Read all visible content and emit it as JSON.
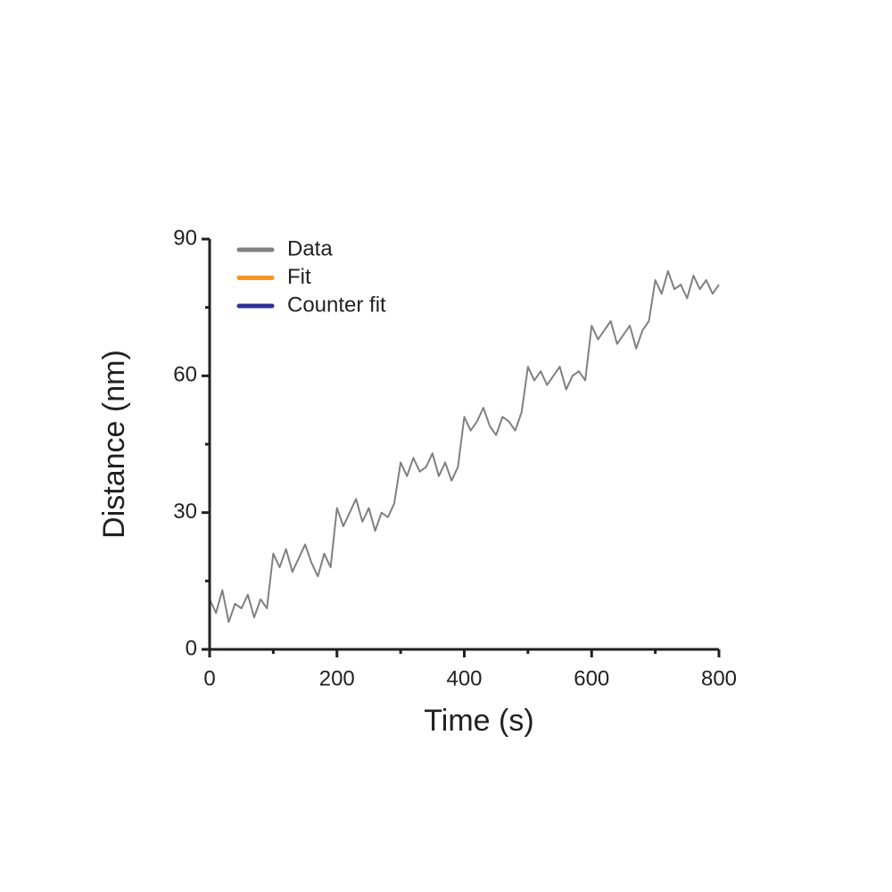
{
  "chart_data": {
    "type": "line",
    "xlabel": "Time (s)",
    "ylabel": "Distance (nm)",
    "x": [
      0,
      10,
      20,
      30,
      40,
      50,
      60,
      70,
      80,
      90,
      100,
      110,
      120,
      130,
      140,
      150,
      160,
      170,
      180,
      190,
      200,
      210,
      220,
      230,
      240,
      250,
      260,
      270,
      280,
      290,
      300,
      310,
      320,
      330,
      340,
      350,
      360,
      370,
      380,
      390,
      400,
      410,
      420,
      430,
      440,
      450,
      460,
      470,
      480,
      490,
      500,
      510,
      520,
      530,
      540,
      550,
      560,
      570,
      580,
      590,
      600,
      610,
      620,
      630,
      640,
      650,
      660,
      670,
      680,
      690,
      700,
      710,
      720,
      730,
      740,
      750,
      760,
      770,
      780,
      790,
      800
    ],
    "series": [
      {
        "name": "Data",
        "color": "#808080",
        "values": [
          11,
          8,
          13,
          6,
          10,
          9,
          12,
          7,
          11,
          9,
          21,
          18,
          22,
          17,
          20,
          23,
          19,
          16,
          21,
          18,
          31,
          27,
          30,
          33,
          28,
          31,
          26,
          30,
          29,
          32,
          41,
          38,
          42,
          39,
          40,
          43,
          38,
          41,
          37,
          40,
          51,
          48,
          50,
          53,
          49,
          47,
          51,
          50,
          48,
          52,
          62,
          59,
          61,
          58,
          60,
          62,
          57,
          60,
          61,
          59,
          71,
          68,
          70,
          72,
          67,
          69,
          71,
          66,
          70,
          72,
          81,
          78,
          83,
          79,
          80,
          77,
          82,
          79,
          81,
          78,
          80
        ]
      },
      {
        "name": "Fit",
        "color": "#f7941d",
        "values": [
          null,
          null,
          null,
          null,
          null,
          null,
          null,
          null,
          null,
          null,
          null,
          null,
          null,
          null,
          null,
          null,
          null,
          null,
          null,
          null,
          null,
          null,
          null,
          null,
          null,
          null,
          null,
          null,
          null,
          null,
          null,
          null,
          null,
          null,
          null,
          null,
          null,
          null,
          null,
          null,
          null,
          null,
          null,
          null,
          null,
          null,
          null,
          null,
          null,
          null,
          null,
          null,
          null,
          null,
          null,
          null,
          null,
          null,
          null,
          null,
          null,
          null,
          null,
          null,
          null,
          null,
          null,
          null,
          null,
          null,
          null,
          null,
          null,
          null,
          null,
          null,
          null,
          null,
          null,
          null,
          null
        ]
      },
      {
        "name": "Counter fit",
        "color": "#2e3192",
        "values": [
          null,
          null,
          null,
          null,
          null,
          null,
          null,
          null,
          null,
          null,
          null,
          null,
          null,
          null,
          null,
          null,
          null,
          null,
          null,
          null,
          null,
          null,
          null,
          null,
          null,
          null,
          null,
          null,
          null,
          null,
          null,
          null,
          null,
          null,
          null,
          null,
          null,
          null,
          null,
          null,
          null,
          null,
          null,
          null,
          null,
          null,
          null,
          null,
          null,
          null,
          null,
          null,
          null,
          null,
          null,
          null,
          null,
          null,
          null,
          null,
          null,
          null,
          null,
          null,
          null,
          null,
          null,
          null,
          null,
          null,
          null,
          null,
          null,
          null,
          null,
          null,
          null,
          null,
          null,
          null,
          null
        ]
      }
    ],
    "xlim": [
      0,
      800
    ],
    "xticks": [
      0,
      200,
      400,
      600,
      800
    ],
    "xminor": [
      100,
      300,
      500,
      700
    ],
    "ylim": [
      0,
      90
    ],
    "yticks": [
      0,
      30,
      60,
      90
    ],
    "yminor": [
      15,
      45,
      75
    ],
    "grid": false,
    "legend": "upper left"
  }
}
